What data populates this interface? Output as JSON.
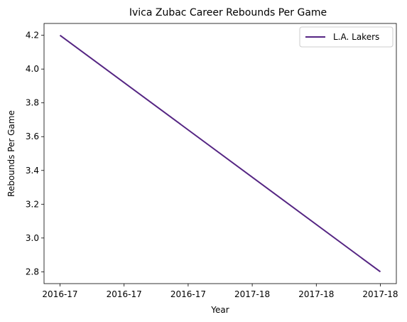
{
  "chart_data": {
    "type": "line",
    "title": "Ivica Zubac Career Rebounds Per Game",
    "xlabel": "Year",
    "ylabel": "Rebounds Per Game",
    "x_tick_labels": [
      "2016-17",
      "2016-17",
      "2016-17",
      "2017-18",
      "2017-18",
      "2017-18"
    ],
    "y_ticks": [
      2.8,
      3.0,
      3.2,
      3.4,
      3.6,
      3.8,
      4.0,
      4.2
    ],
    "ylim": [
      2.73,
      4.27
    ],
    "grid": false,
    "legend_position": "top-right",
    "series": [
      {
        "name": "L.A. Lakers",
        "color": "#552583",
        "x": [
          "2016-17",
          "2017-18"
        ],
        "values": [
          4.2,
          2.8
        ]
      }
    ]
  }
}
